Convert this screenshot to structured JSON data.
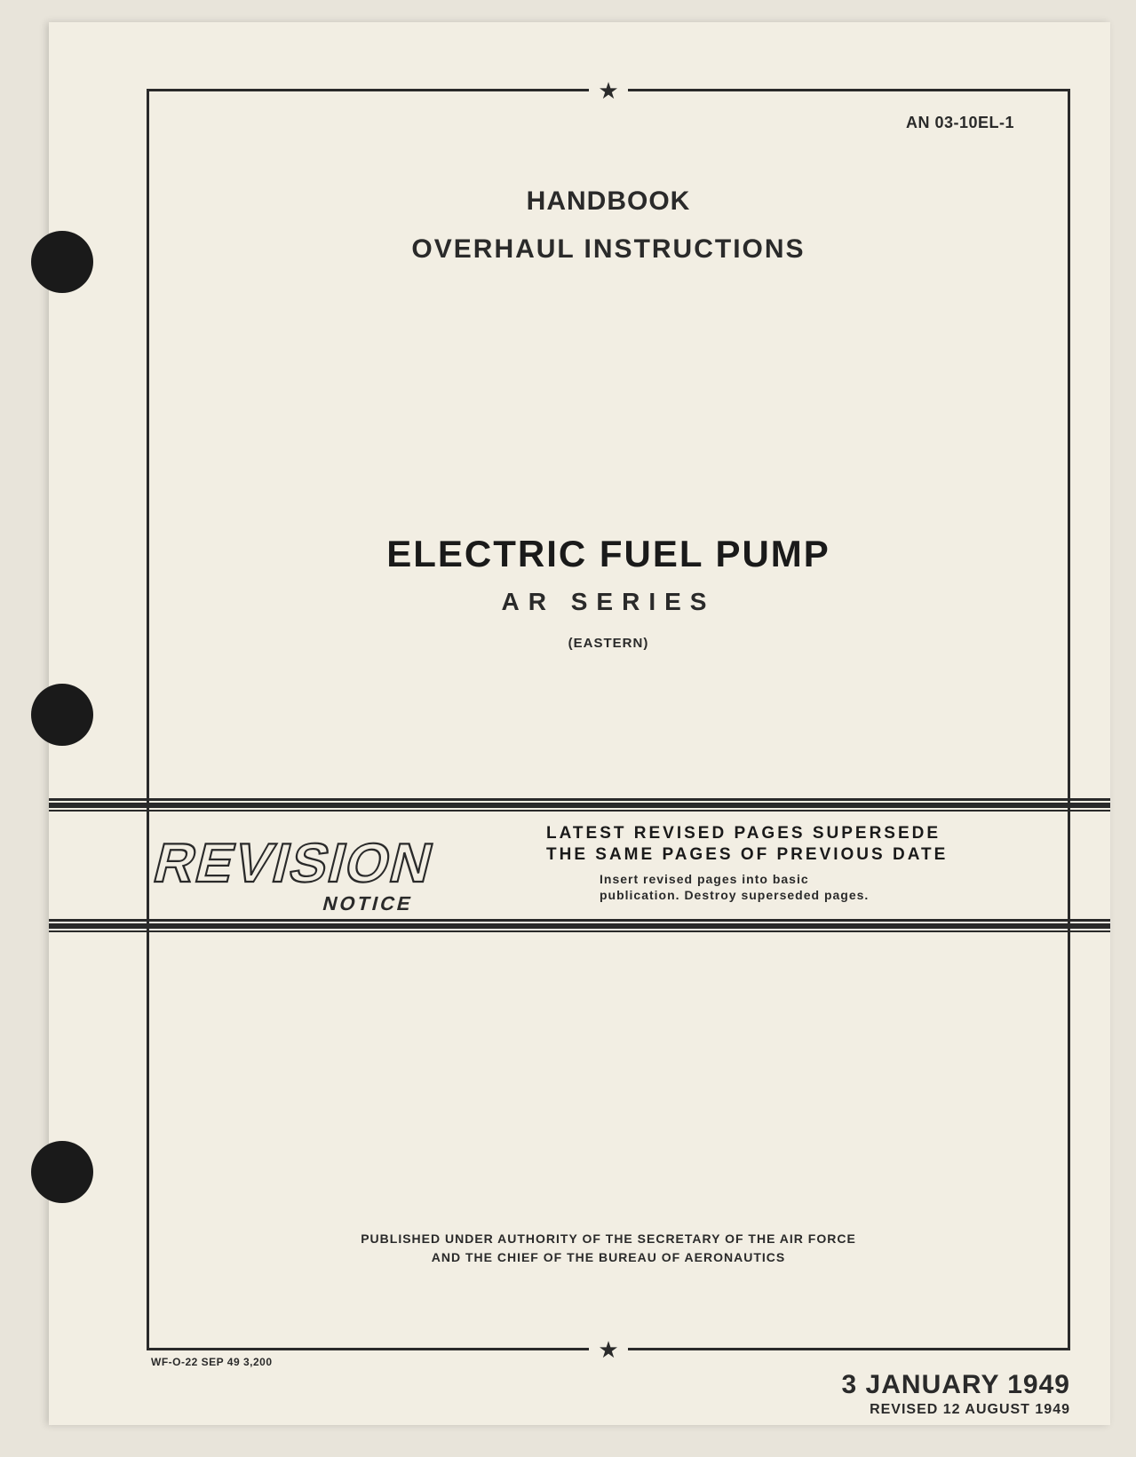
{
  "document_number": "AN 03-10EL-1",
  "header": {
    "line1": "HANDBOOK",
    "line2": "OVERHAUL  INSTRUCTIONS"
  },
  "title": {
    "main": "ELECTRIC FUEL PUMP",
    "series": "AR SERIES",
    "manufacturer": "(EASTERN)"
  },
  "revision_banner": {
    "stamp_word": "REVISION",
    "stamp_sub": "NOTICE",
    "bold_line1": "LATEST REVISED PAGES SUPERSEDE",
    "bold_line2": "THE SAME PAGES OF PREVIOUS DATE",
    "small_line1": "Insert  revised   pages  into  basic",
    "small_line2": "publication.  Destroy  superseded  pages."
  },
  "authority": {
    "line1": "PUBLISHED UNDER AUTHORITY OF THE SECRETARY OF THE AIR FORCE",
    "line2": "AND THE CHIEF OF THE BUREAU OF AERONAUTICS"
  },
  "print_code": "WF-O-22  SEP 49   3,200",
  "dates": {
    "original": "3  JANUARY  1949",
    "revised": "REVISED 12 AUGUST 1949"
  },
  "colors": {
    "page_bg": "#f2eee3",
    "body_bg": "#e8e4da",
    "ink": "#2a2a2a",
    "ink_dark": "#1a1a1a"
  }
}
